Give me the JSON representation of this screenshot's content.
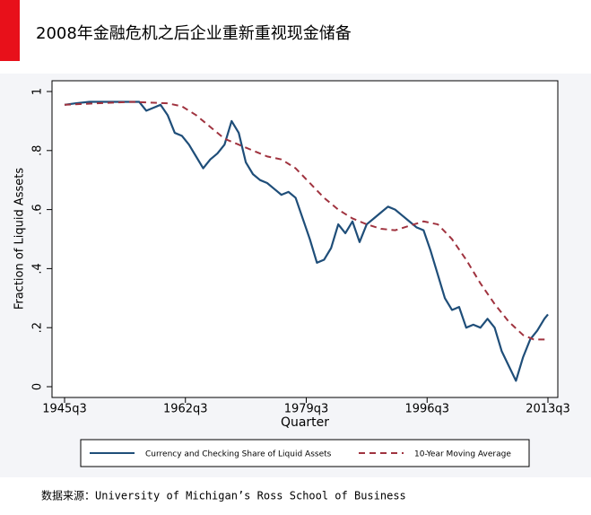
{
  "chart_data": {
    "type": "line",
    "title": "2008年金融危机之后企业重新重视现金储备",
    "ylabel": "Fraction of Liquid Assets",
    "xlabel": "Quarter",
    "source": "数据来源：University of Michigan’s Ross School of Business",
    "xlim": [
      1945.5,
      2013.5
    ],
    "ylim": [
      0,
      1
    ],
    "xticks": [
      {
        "value": 1945.5,
        "label": "1945q3"
      },
      {
        "value": 1962.5,
        "label": "1962q3"
      },
      {
        "value": 1979.5,
        "label": "1979q3"
      },
      {
        "value": 1996.5,
        "label": "1996q3"
      },
      {
        "value": 2013.5,
        "label": "2013q3"
      }
    ],
    "yticks": [
      0,
      {
        "value": 0.2,
        "label": ".2"
      },
      {
        "value": 0.4,
        "label": ".4"
      },
      {
        "value": 0.6,
        "label": ".6"
      },
      {
        "value": 0.8,
        "label": ".8"
      },
      1
    ],
    "series": [
      {
        "name": "Currency and Checking Share of Liquid Assets",
        "color": "#1f4e79",
        "dash": false,
        "x": [
          1945.5,
          1947,
          1949,
          1951,
          1953,
          1955,
          1956,
          1957,
          1958,
          1959,
          1960,
          1961,
          1962,
          1963,
          1964,
          1965,
          1966,
          1967,
          1968,
          1969,
          1970,
          1971,
          1972,
          1973,
          1974,
          1975,
          1976,
          1977,
          1978,
          1979,
          1980,
          1981,
          1982,
          1983,
          1984,
          1985,
          1986,
          1987,
          1988,
          1989,
          1990,
          1991,
          1992,
          1993,
          1994,
          1995,
          1996,
          1997,
          1998,
          1999,
          2000,
          2001,
          2002,
          2003,
          2004,
          2005,
          2006,
          2007,
          2008,
          2009,
          2010,
          2011,
          2012,
          2013,
          2013.5
        ],
        "values": [
          0.955,
          0.96,
          0.965,
          0.965,
          0.965,
          0.965,
          0.965,
          0.935,
          0.945,
          0.955,
          0.92,
          0.86,
          0.85,
          0.82,
          0.78,
          0.74,
          0.77,
          0.79,
          0.82,
          0.9,
          0.86,
          0.76,
          0.72,
          0.7,
          0.69,
          0.67,
          0.65,
          0.66,
          0.64,
          0.57,
          0.5,
          0.42,
          0.43,
          0.47,
          0.55,
          0.52,
          0.56,
          0.49,
          0.55,
          0.57,
          0.59,
          0.61,
          0.6,
          0.58,
          0.56,
          0.54,
          0.53,
          0.46,
          0.38,
          0.3,
          0.26,
          0.27,
          0.2,
          0.21,
          0.2,
          0.23,
          0.2,
          0.12,
          0.07,
          0.02,
          0.1,
          0.16,
          0.19,
          0.23,
          0.245
        ]
      },
      {
        "name": "10-Year Moving Average",
        "color": "#a0333f",
        "dash": true,
        "x": [
          1945.5,
          1950,
          1955,
          1960,
          1962,
          1964,
          1966,
          1968,
          1970,
          1972,
          1974,
          1976,
          1978,
          1980,
          1982,
          1984,
          1986,
          1988,
          1990,
          1992,
          1994,
          1996,
          1998,
          2000,
          2002,
          2004,
          2006,
          2008,
          2010,
          2011.5,
          2013.5
        ],
        "values": [
          0.955,
          0.96,
          0.965,
          0.96,
          0.95,
          0.92,
          0.88,
          0.84,
          0.82,
          0.8,
          0.78,
          0.77,
          0.74,
          0.69,
          0.64,
          0.6,
          0.57,
          0.55,
          0.535,
          0.53,
          0.545,
          0.56,
          0.55,
          0.5,
          0.43,
          0.35,
          0.28,
          0.22,
          0.175,
          0.16,
          0.16
        ]
      }
    ]
  }
}
